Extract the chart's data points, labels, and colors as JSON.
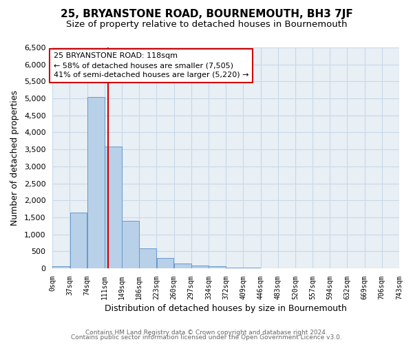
{
  "title": "25, BRYANSTONE ROAD, BOURNEMOUTH, BH3 7JF",
  "subtitle": "Size of property relative to detached houses in Bournemouth",
  "xlabel": "Distribution of detached houses by size in Bournemouth",
  "ylabel": "Number of detached properties",
  "footer_line1": "Contains HM Land Registry data © Crown copyright and database right 2024.",
  "footer_line2": "Contains public sector information licensed under the Open Government Licence v3.0.",
  "bin_edges": [
    0,
    37,
    74,
    111,
    148,
    185,
    222,
    259,
    296,
    333,
    370,
    407,
    444,
    481,
    518,
    555,
    592,
    629,
    666,
    703,
    740
  ],
  "bin_labels": [
    "0sqm",
    "37sqm",
    "74sqm",
    "111sqm",
    "149sqm",
    "186sqm",
    "223sqm",
    "260sqm",
    "297sqm",
    "334sqm",
    "372sqm",
    "409sqm",
    "446sqm",
    "483sqm",
    "520sqm",
    "557sqm",
    "594sqm",
    "632sqm",
    "669sqm",
    "706sqm",
    "743sqm"
  ],
  "counts": [
    70,
    1650,
    5050,
    3580,
    1400,
    580,
    300,
    150,
    90,
    55,
    30,
    15,
    8,
    4,
    2,
    1,
    0,
    0,
    0,
    0
  ],
  "bar_color": "#b8d0e8",
  "bar_edge_color": "#6699cc",
  "vline_x": 118,
  "vline_color": "#cc0000",
  "annotation_text": "25 BRYANSTONE ROAD: 118sqm\n← 58% of detached houses are smaller (7,505)\n41% of semi-detached houses are larger (5,220) →",
  "annotation_box_color": "#ffffff",
  "annotation_box_edge_color": "#cc0000",
  "ylim": [
    0,
    6500
  ],
  "yticks": [
    0,
    500,
    1000,
    1500,
    2000,
    2500,
    3000,
    3500,
    4000,
    4500,
    5000,
    5500,
    6000,
    6500
  ],
  "fig_bg_color": "#ffffff",
  "plot_bg_color": "#e8eff5",
  "title_fontsize": 11,
  "subtitle_fontsize": 9.5,
  "grid_color": "#c8d8e8"
}
